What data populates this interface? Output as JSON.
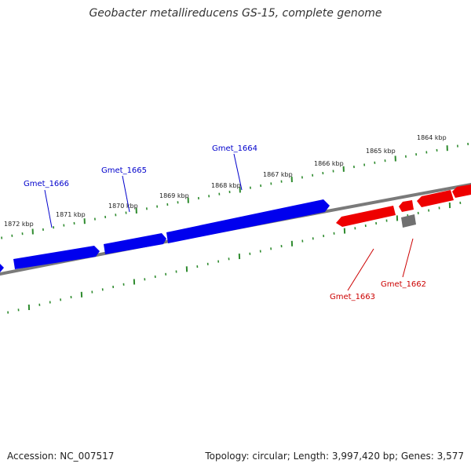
{
  "title": "Geobacter metallireducens GS-15, complete genome",
  "footer": {
    "accession": "Accession: NC_007517",
    "summary": "Topology: circular; Length: 3,997,420 bp; Genes: 3,577"
  },
  "colors": {
    "forward_gene": "#0000ee",
    "reverse_gene": "#ee0000",
    "other_gene": "#707070",
    "backbone": "#7a7a7a",
    "ticks": "#2e8b2e",
    "forward_label": "#0000cc",
    "reverse_label": "#cc0000"
  },
  "scale_ticks": [
    "1872 kbp",
    "1871 kbp",
    "1870 kbp",
    "1869 kbp",
    "1868 kbp",
    "1867 kbp",
    "1866 kbp",
    "1865 kbp",
    "1864 kbp"
  ],
  "genes": {
    "forward": [
      "Gmet_1666",
      "Gmet_1665",
      "Gmet_1664"
    ],
    "reverse": [
      "Gmet_1663",
      "Gmet_1662"
    ]
  }
}
